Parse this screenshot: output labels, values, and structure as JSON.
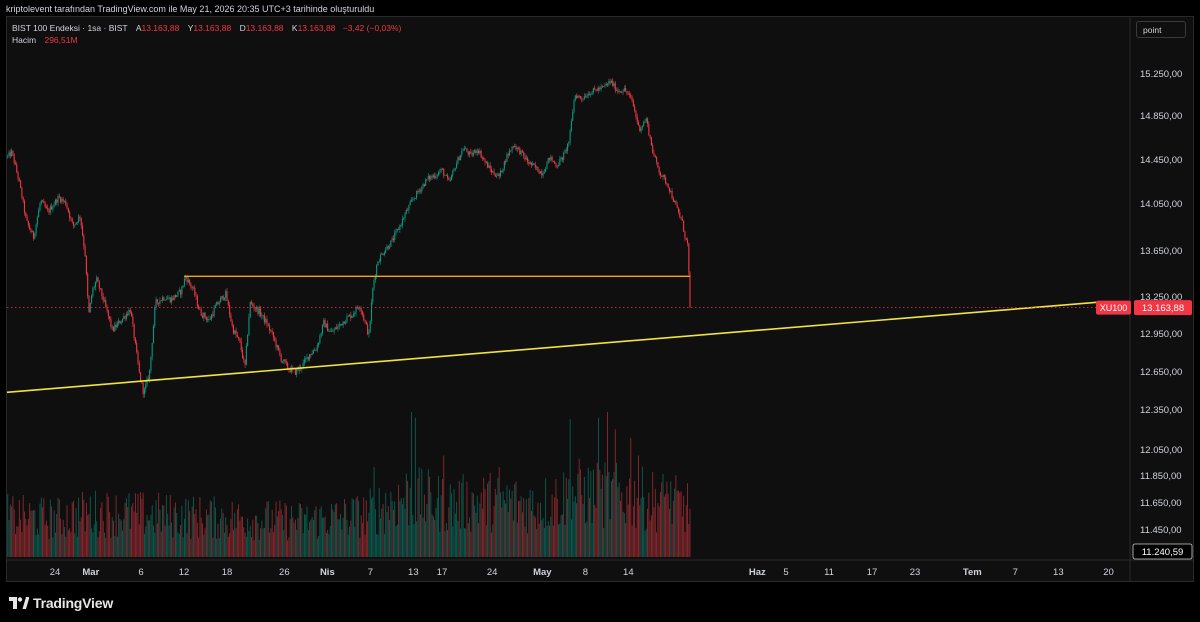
{
  "header": {
    "credit": "kriptolevent tarafından TradingView.com ile May 21, 2026 20:35 UTC+3 tarihinde oluşturuldu"
  },
  "legend": {
    "symbol": "BIST 100 Endeksi · 1sa · BIST",
    "open_label": "A",
    "open": "13.163,88",
    "high_label": "Y",
    "high": "13.163,88",
    "low_label": "D",
    "low": "13.163,88",
    "close_label": "K",
    "close": "13.163,88",
    "change": "−3,42 (−0,03%)",
    "volume_label": "Hacim",
    "volume": "296,51M"
  },
  "toolbar": {
    "point_label": "point"
  },
  "brand": {
    "name": "TradingView"
  },
  "colors": {
    "bg": "#0f0f0f",
    "up": "#089981",
    "down": "#f23645",
    "support_line": "#f0e442",
    "resistance_line": "#f7a21b",
    "price_line": "#f23645"
  },
  "chart_data": {
    "type": "candlestick",
    "symbol_tag": "XU100",
    "last_price": 13163.88,
    "last_price_label": "13.163,88",
    "last_volume_label": "11.240,59",
    "ylim": [
      11240,
      15450
    ],
    "price_ticks": [
      "15.250,00",
      "14.850,00",
      "14.450,00",
      "14.050,00",
      "13.650,00",
      "13.250,00",
      "12.950,00",
      "12.650,00",
      "12.350,00",
      "12.050,00",
      "11.850,00",
      "11.650,00",
      "11.450,00"
    ],
    "price_tick_values": [
      15250,
      14850,
      14450,
      14050,
      13650,
      13250,
      12950,
      12650,
      12350,
      12050,
      11850,
      11650,
      11450
    ],
    "time_ticks": [
      "24",
      "Mar",
      "6",
      "12",
      "18",
      "26",
      "Nis",
      "7",
      "13",
      "17",
      "24",
      "May",
      "8",
      "14",
      "Haz",
      "5",
      "11",
      "17",
      "23",
      "Tem",
      "7",
      "13",
      "20"
    ],
    "time_tick_days": [
      -5,
      0,
      7,
      13,
      19,
      27,
      33,
      39,
      45,
      49,
      56,
      63,
      69,
      75,
      93,
      97,
      103,
      109,
      115,
      123,
      129,
      135,
      142
    ],
    "time_tick_bold": [
      false,
      true,
      false,
      false,
      false,
      false,
      true,
      false,
      false,
      false,
      false,
      true,
      false,
      false,
      true,
      false,
      false,
      false,
      false,
      true,
      false,
      false,
      false
    ],
    "x_range_days": [
      -11.7,
      145
    ],
    "price_path": [
      {
        "d": -11.6,
        "p": 14480
      },
      {
        "d": -11.0,
        "p": 14520
      },
      {
        "d": -10.0,
        "p": 14250
      },
      {
        "d": -9.0,
        "p": 13900
      },
      {
        "d": -8.0,
        "p": 13770
      },
      {
        "d": -7.0,
        "p": 14080
      },
      {
        "d": -6.0,
        "p": 13980
      },
      {
        "d": -4.5,
        "p": 14110
      },
      {
        "d": -3.5,
        "p": 14060
      },
      {
        "d": -2.5,
        "p": 13860
      },
      {
        "d": -1.5,
        "p": 13950
      },
      {
        "d": -0.8,
        "p": 13620
      },
      {
        "d": -0.3,
        "p": 13100
      },
      {
        "d": 0.2,
        "p": 13300
      },
      {
        "d": 0.8,
        "p": 13400
      },
      {
        "d": 2.0,
        "p": 13180
      },
      {
        "d": 3.0,
        "p": 12980
      },
      {
        "d": 4.5,
        "p": 13080
      },
      {
        "d": 5.5,
        "p": 13150
      },
      {
        "d": 6.8,
        "p": 12620
      },
      {
        "d": 7.4,
        "p": 12480
      },
      {
        "d": 8.2,
        "p": 12650
      },
      {
        "d": 9.0,
        "p": 13200
      },
      {
        "d": 10.2,
        "p": 13250
      },
      {
        "d": 11.2,
        "p": 13230
      },
      {
        "d": 12.6,
        "p": 13300
      },
      {
        "d": 13.2,
        "p": 13430
      },
      {
        "d": 14.3,
        "p": 13310
      },
      {
        "d": 15.2,
        "p": 13130
      },
      {
        "d": 16.5,
        "p": 13060
      },
      {
        "d": 17.5,
        "p": 13180
      },
      {
        "d": 18.8,
        "p": 13280
      },
      {
        "d": 19.8,
        "p": 12990
      },
      {
        "d": 20.8,
        "p": 12880
      },
      {
        "d": 21.5,
        "p": 12680
      },
      {
        "d": 22.2,
        "p": 13200
      },
      {
        "d": 23.5,
        "p": 13130
      },
      {
        "d": 24.5,
        "p": 13040
      },
      {
        "d": 25.5,
        "p": 12920
      },
      {
        "d": 26.5,
        "p": 12760
      },
      {
        "d": 27.5,
        "p": 12680
      },
      {
        "d": 28.5,
        "p": 12650
      },
      {
        "d": 29.5,
        "p": 12700
      },
      {
        "d": 30.5,
        "p": 12790
      },
      {
        "d": 31.5,
        "p": 12840
      },
      {
        "d": 32.5,
        "p": 13040
      },
      {
        "d": 33.5,
        "p": 12960
      },
      {
        "d": 34.5,
        "p": 13010
      },
      {
        "d": 35.5,
        "p": 13070
      },
      {
        "d": 36.5,
        "p": 13110
      },
      {
        "d": 37.5,
        "p": 13190
      },
      {
        "d": 38.8,
        "p": 12940
      },
      {
        "d": 39.4,
        "p": 13360
      },
      {
        "d": 40.0,
        "p": 13560
      },
      {
        "d": 41.0,
        "p": 13660
      },
      {
        "d": 42.0,
        "p": 13730
      },
      {
        "d": 43.0,
        "p": 13850
      },
      {
        "d": 44.0,
        "p": 13980
      },
      {
        "d": 45.0,
        "p": 14100
      },
      {
        "d": 46.0,
        "p": 14190
      },
      {
        "d": 47.0,
        "p": 14280
      },
      {
        "d": 48.0,
        "p": 14310
      },
      {
        "d": 49.0,
        "p": 14360
      },
      {
        "d": 50.0,
        "p": 14240
      },
      {
        "d": 51.0,
        "p": 14420
      },
      {
        "d": 52.0,
        "p": 14560
      },
      {
        "d": 53.0,
        "p": 14490
      },
      {
        "d": 54.0,
        "p": 14550
      },
      {
        "d": 55.0,
        "p": 14430
      },
      {
        "d": 56.0,
        "p": 14340
      },
      {
        "d": 57.0,
        "p": 14300
      },
      {
        "d": 58.0,
        "p": 14480
      },
      {
        "d": 59.0,
        "p": 14590
      },
      {
        "d": 60.0,
        "p": 14520
      },
      {
        "d": 61.0,
        "p": 14430
      },
      {
        "d": 62.0,
        "p": 14380
      },
      {
        "d": 63.0,
        "p": 14330
      },
      {
        "d": 64.0,
        "p": 14470
      },
      {
        "d": 65.0,
        "p": 14400
      },
      {
        "d": 66.0,
        "p": 14490
      },
      {
        "d": 66.8,
        "p": 14640
      },
      {
        "d": 67.5,
        "p": 15050
      },
      {
        "d": 68.5,
        "p": 15020
      },
      {
        "d": 69.5,
        "p": 15070
      },
      {
        "d": 70.5,
        "p": 15100
      },
      {
        "d": 71.5,
        "p": 15120
      },
      {
        "d": 72.5,
        "p": 15180
      },
      {
        "d": 73.5,
        "p": 15090
      },
      {
        "d": 74.5,
        "p": 15100
      },
      {
        "d": 75.5,
        "p": 15000
      },
      {
        "d": 76.5,
        "p": 14730
      },
      {
        "d": 77.5,
        "p": 14820
      },
      {
        "d": 78.5,
        "p": 14500
      },
      {
        "d": 79.5,
        "p": 14320
      },
      {
        "d": 80.5,
        "p": 14230
      },
      {
        "d": 81.5,
        "p": 14050
      },
      {
        "d": 82.5,
        "p": 13900
      },
      {
        "d": 83.0,
        "p": 13750
      },
      {
        "d": 83.3,
        "p": 13700
      },
      {
        "d": 83.6,
        "p": 13163.88
      }
    ],
    "volume_profile": [
      {
        "d": -11.6,
        "v": 0.35
      },
      {
        "d": -5,
        "v": 0.33
      },
      {
        "d": 0,
        "v": 0.38
      },
      {
        "d": 10,
        "v": 0.36
      },
      {
        "d": 20,
        "v": 0.33
      },
      {
        "d": 30,
        "v": 0.31
      },
      {
        "d": 38,
        "v": 0.36
      },
      {
        "d": 44,
        "v": 0.52
      },
      {
        "d": 50,
        "v": 0.45
      },
      {
        "d": 56,
        "v": 0.48
      },
      {
        "d": 62,
        "v": 0.44
      },
      {
        "d": 68,
        "v": 0.55
      },
      {
        "d": 74,
        "v": 0.52
      },
      {
        "d": 80,
        "v": 0.48
      },
      {
        "d": 83.6,
        "v": 0.42
      }
    ],
    "volume_spikes": [
      {
        "d": 39.5,
        "v": 0.62
      },
      {
        "d": 44.8,
        "v": 1.0
      },
      {
        "d": 45.3,
        "v": 0.96
      },
      {
        "d": 49.2,
        "v": 0.7
      },
      {
        "d": 57.0,
        "v": 0.62
      },
      {
        "d": 66.9,
        "v": 0.95
      },
      {
        "d": 70.8,
        "v": 0.96
      },
      {
        "d": 72.1,
        "v": 1.0
      },
      {
        "d": 73.2,
        "v": 0.88
      },
      {
        "d": 75.3,
        "v": 0.82
      },
      {
        "d": 76.4,
        "v": 0.7
      },
      {
        "d": 80.4,
        "v": 0.52
      }
    ],
    "lines": [
      {
        "name": "support-trendline",
        "from": {
          "d": -11.7,
          "p": 12490
        },
        "to": {
          "d": 141,
          "p": 13210
        }
      },
      {
        "name": "resistance-level",
        "from": {
          "d": 13.0,
          "p": 13430
        },
        "to": {
          "d": 83.6,
          "p": 13430
        }
      },
      {
        "name": "last-price-line",
        "from": {
          "d": -11.7,
          "p": 13163.88
        },
        "to": {
          "d": 141,
          "p": 13163.88
        }
      }
    ],
    "grid": false
  }
}
